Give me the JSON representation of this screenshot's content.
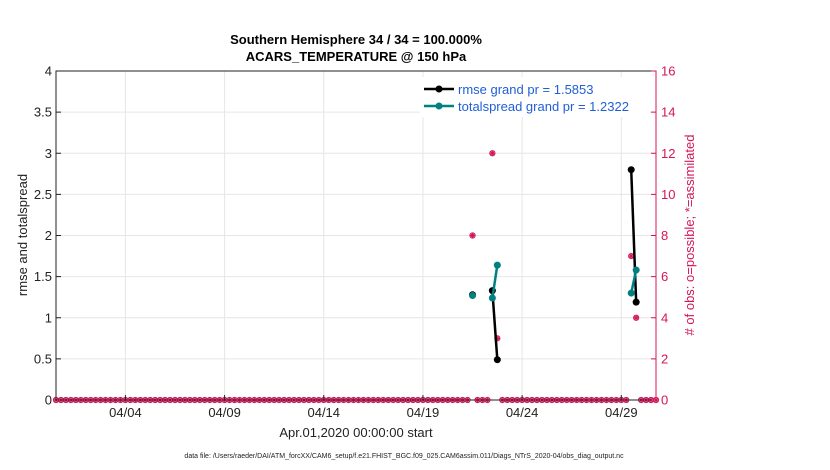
{
  "chart_data": {
    "type": "line",
    "title_lines": [
      "Southern Hemisphere 34 / 34 = 100.000%",
      "ACARS_TEMPERATURE @ 150 hPa"
    ],
    "xlabel": "Apr.01,2020 00:00:00 start",
    "ylabel_left": "rmse and totalspread",
    "ylabel_right": "# of obs: o=possible; *=assimilated",
    "footer": "data file: /Users/raeder/DAI/ATM_forcXX/CAM6_setup/f.e21.FHIST_BGC.f09_025.CAM6assim.011/Diags_NTrS_2020-04/obs_diag_output.nc",
    "x_range": [
      0.5,
      30.75
    ],
    "x_ticks": [
      {
        "x": 4,
        "label": "04/04"
      },
      {
        "x": 9,
        "label": "04/09"
      },
      {
        "x": 14,
        "label": "04/14"
      },
      {
        "x": 19,
        "label": "04/19"
      },
      {
        "x": 24,
        "label": "04/24"
      },
      {
        "x": 29,
        "label": "04/29"
      }
    ],
    "ylim_left": [
      0,
      4
    ],
    "yticks_left": [
      "0",
      "0.5",
      "1",
      "1.5",
      "2",
      "2.5",
      "3",
      "3.5",
      "4"
    ],
    "ylim_right": [
      0,
      16
    ],
    "yticks_right": [
      "0",
      "2",
      "4",
      "6",
      "8",
      "10",
      "12",
      "14",
      "16"
    ],
    "grid": true,
    "legend_position": "top-right",
    "colors": {
      "rmse": "#000000",
      "spread": "#008080",
      "obs": "#d4145a",
      "grid": "#e6e6e6"
    },
    "series": [
      {
        "name": "rmse grand pr = 1.5853",
        "segments": [
          [
            [
              21.5,
              1.28
            ]
          ],
          [
            [
              22.5,
              1.33
            ],
            [
              22.75,
              0.49
            ]
          ],
          [
            [
              29.5,
              2.8
            ],
            [
              29.75,
              1.19
            ]
          ]
        ]
      },
      {
        "name": "totalspread grand pr = 1.2322",
        "segments": [
          [
            [
              21.5,
              1.27
            ]
          ],
          [
            [
              22.5,
              1.24
            ],
            [
              22.75,
              1.64
            ]
          ],
          [
            [
              29.5,
              1.3
            ],
            [
              29.75,
              1.58
            ]
          ]
        ]
      }
    ],
    "obs_nonzero": [
      {
        "x": 21.5,
        "possible": 8,
        "assimilated": 8
      },
      {
        "x": 22.5,
        "possible": 12,
        "assimilated": 12
      },
      {
        "x": 22.75,
        "possible": 3,
        "assimilated": 3
      },
      {
        "x": 29.5,
        "possible": 7,
        "assimilated": 7
      },
      {
        "x": 29.75,
        "possible": 4,
        "assimilated": 4
      }
    ],
    "obs_time_step": 0.25
  }
}
